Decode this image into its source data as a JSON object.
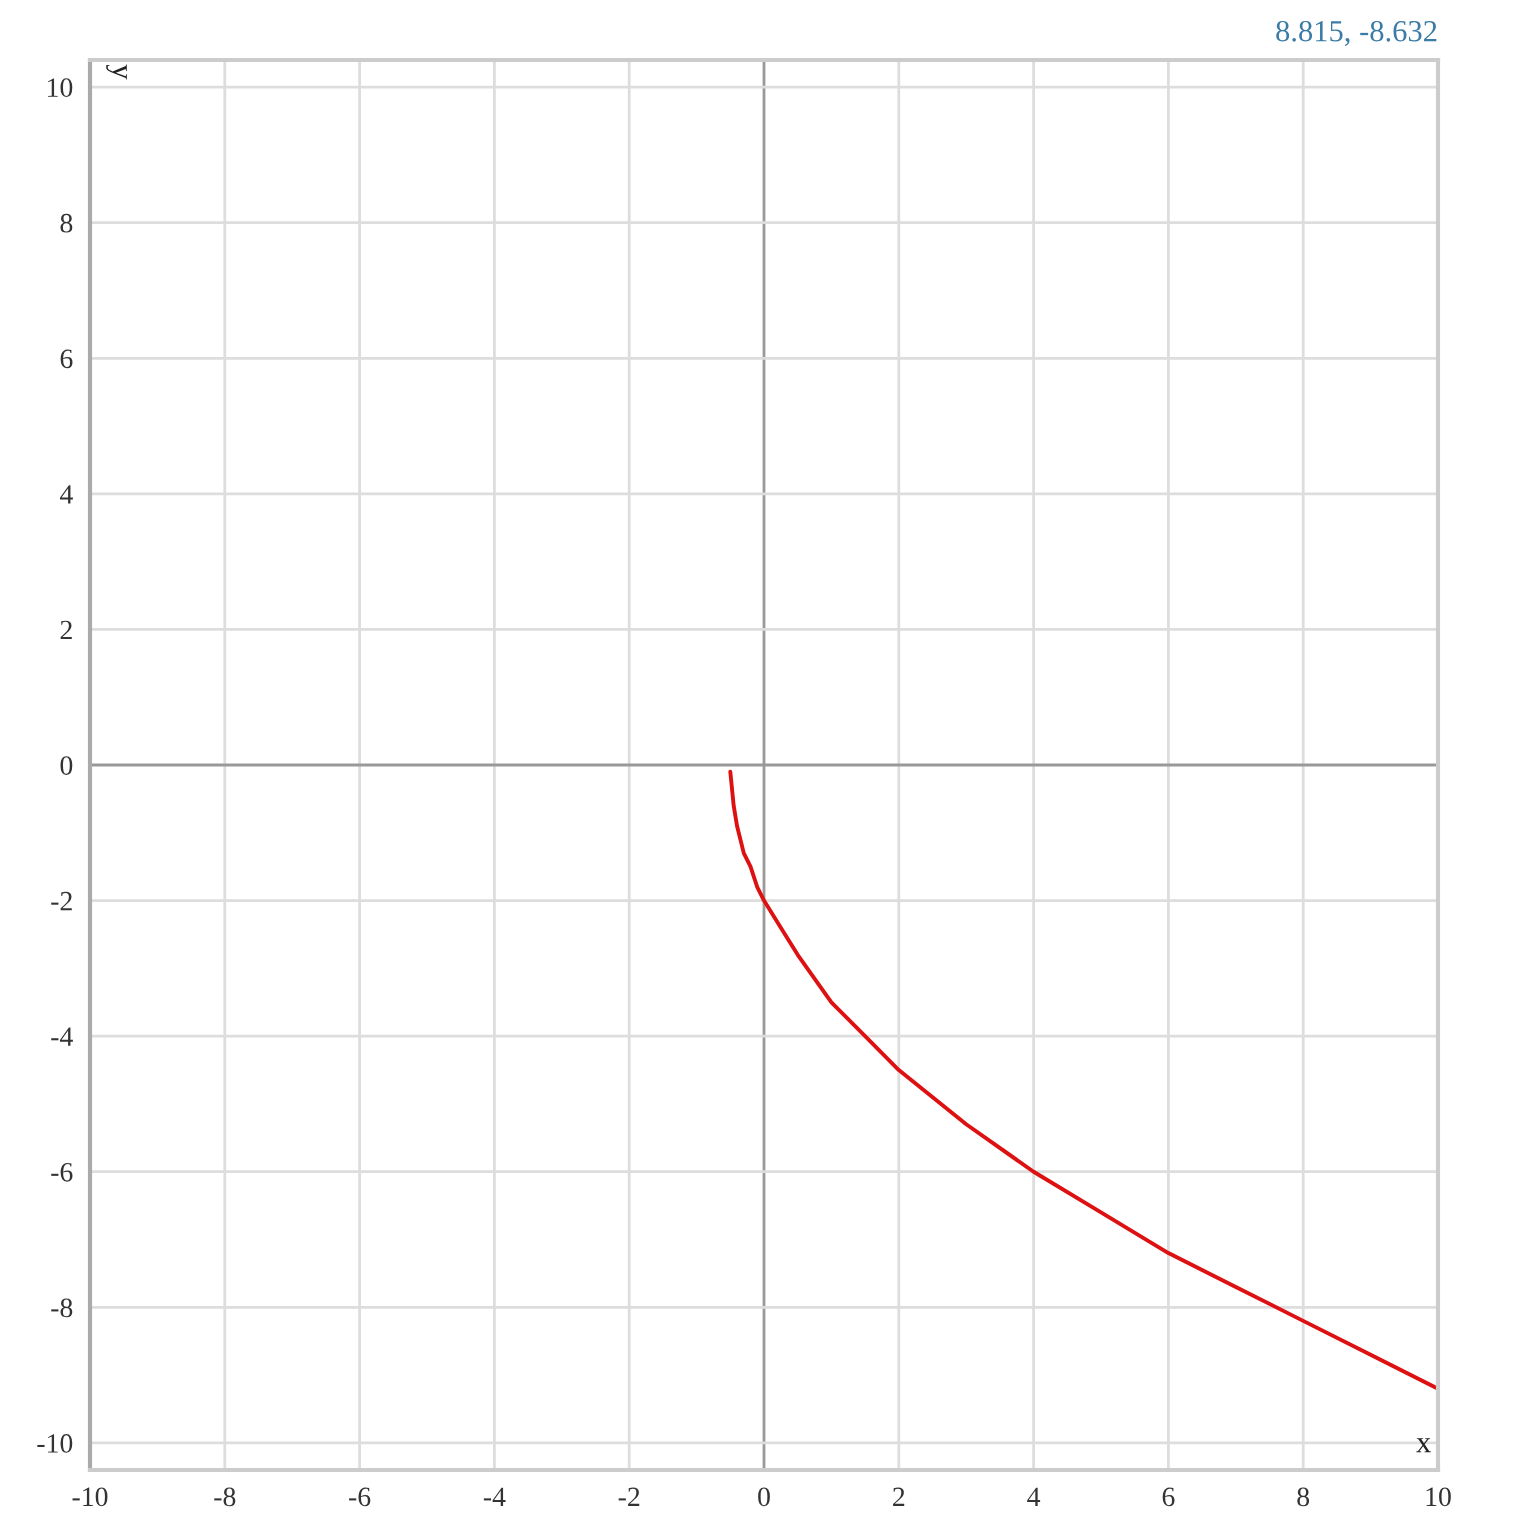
{
  "chart_data": {
    "type": "line",
    "xlabel": "x",
    "ylabel": "y",
    "annotations": [
      "8.815, -8.632"
    ],
    "x": [
      -0.5,
      -0.45,
      -0.4,
      -0.3,
      -0.2,
      -0.1,
      0,
      0.25,
      0.5,
      1,
      1.5,
      2,
      3,
      4,
      5,
      6,
      7,
      8,
      9,
      10
    ],
    "series": [
      {
        "color": "#dd1111",
        "values": [
          -0.1,
          -0.6,
          -0.9,
          -1.3,
          -1.5,
          -1.8,
          -2,
          -2.4,
          -2.8,
          -3.5,
          -4,
          -4.5,
          -5.3,
          -6,
          -6.6,
          -7.2,
          -7.7,
          -8.2,
          -8.7,
          -9.2
        ]
      }
    ],
    "xlim": [
      -10,
      10
    ],
    "ylim": [
      -10.4,
      10.4
    ],
    "xticks": [
      -10,
      -8,
      -6,
      -4,
      -2,
      0,
      2,
      4,
      6,
      8,
      10
    ],
    "yticks": [
      -10,
      -8,
      -6,
      -4,
      -2,
      0,
      2,
      4,
      6,
      8,
      10
    ],
    "grid": true,
    "marker": "none",
    "line_style": "solid"
  }
}
